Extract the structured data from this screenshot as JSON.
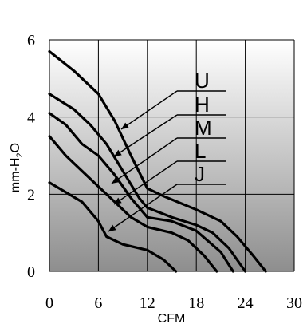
{
  "chart_data": {
    "type": "line",
    "xlabel": "CFM",
    "ylabel": "mm-H2O",
    "ylabel_main": "mm-H",
    "ylabel_sub": "2",
    "ylabel_end": "O",
    "xlim": [
      0,
      30
    ],
    "ylim": [
      0,
      6
    ],
    "xticks": [
      0,
      6,
      12,
      18,
      24,
      30
    ],
    "yticks": [
      0,
      2,
      4,
      6
    ],
    "xtick_labels": [
      "0",
      "6",
      "12",
      "18",
      "24",
      "30"
    ],
    "ytick_labels": [
      "0",
      "2",
      "4",
      "6"
    ],
    "grid": true,
    "series": [
      {
        "name": "U",
        "points": [
          [
            0,
            5.7
          ],
          [
            3,
            5.2
          ],
          [
            6,
            4.6
          ],
          [
            8,
            3.9
          ],
          [
            10,
            3.0
          ],
          [
            12,
            2.15
          ],
          [
            14,
            1.95
          ],
          [
            18,
            1.6
          ],
          [
            21,
            1.3
          ],
          [
            23,
            0.9
          ],
          [
            25,
            0.4
          ],
          [
            26.5,
            0
          ]
        ]
      },
      {
        "name": "H",
        "points": [
          [
            0,
            4.6
          ],
          [
            3,
            4.2
          ],
          [
            5,
            3.8
          ],
          [
            7,
            3.3
          ],
          [
            9,
            2.6
          ],
          [
            11,
            1.9
          ],
          [
            12,
            1.65
          ],
          [
            15,
            1.4
          ],
          [
            18,
            1.2
          ],
          [
            20,
            1.0
          ],
          [
            22,
            0.6
          ],
          [
            24,
            0
          ]
        ]
      },
      {
        "name": "M",
        "points": [
          [
            0,
            4.1
          ],
          [
            2,
            3.8
          ],
          [
            4,
            3.3
          ],
          [
            6,
            3.0
          ],
          [
            8,
            2.5
          ],
          [
            10,
            1.9
          ],
          [
            12,
            1.4
          ],
          [
            15,
            1.3
          ],
          [
            18,
            1.05
          ],
          [
            21,
            0.5
          ],
          [
            22.5,
            0
          ]
        ]
      },
      {
        "name": "L",
        "points": [
          [
            0,
            3.5
          ],
          [
            2,
            3.0
          ],
          [
            4,
            2.6
          ],
          [
            6,
            2.2
          ],
          [
            8,
            1.8
          ],
          [
            10,
            1.4
          ],
          [
            12,
            1.15
          ],
          [
            15,
            1.0
          ],
          [
            17,
            0.8
          ],
          [
            19,
            0.4
          ],
          [
            20.5,
            0
          ]
        ]
      },
      {
        "name": "J",
        "points": [
          [
            0,
            2.3
          ],
          [
            2,
            2.05
          ],
          [
            4,
            1.8
          ],
          [
            6,
            1.3
          ],
          [
            7,
            0.9
          ],
          [
            9,
            0.7
          ],
          [
            12,
            0.55
          ],
          [
            14,
            0.3
          ],
          [
            15.5,
            0
          ]
        ]
      }
    ],
    "labels": [
      "U",
      "H",
      "M",
      "L",
      "J"
    ]
  }
}
